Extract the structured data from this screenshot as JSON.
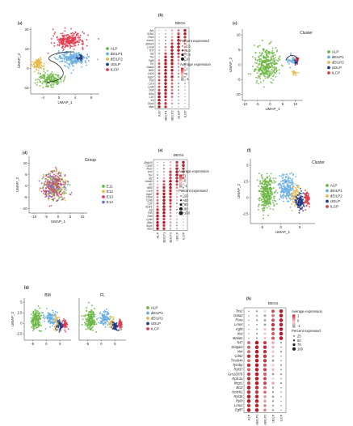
{
  "colors": {
    "ALP": "#6cb744",
    "dEILP1": "#6aaee0",
    "dEILP2": "#e8b84a",
    "cEILP": "#233a86",
    "ILCP": "#e23a4a",
    "E11": "#6cb744",
    "E12": "#e8b84a",
    "E13": "#e23a4a",
    "E14": "#8a6fc0",
    "dot_low": "#f3d3d3",
    "dot_high": "#b51d2a",
    "dot_neg": "#9d9d9d"
  },
  "panel_labels": [
    "(a)",
    "(b)",
    "(c)",
    "(d)",
    "(e)",
    "(f)",
    "(g)",
    "(h)"
  ],
  "chart_data": [
    {
      "id": "a",
      "type": "scatter",
      "xlabel": "UMAP_1",
      "ylabel": "UMAP_2",
      "xticks": [
        -4,
        0,
        4,
        8
      ],
      "yticks": [
        -10,
        0,
        10,
        20
      ],
      "xlim": [
        -7,
        10
      ],
      "ylim": [
        -13,
        21
      ],
      "legend": [
        "ALP",
        "dEILP1",
        "dEILP2",
        "cEILP",
        "ILCP"
      ],
      "clusters": [
        {
          "name": "ILCP",
          "cx": 2.5,
          "cy": 14.5,
          "sx": 3.2,
          "sy": 3.2,
          "n": 240
        },
        {
          "name": "dEILP1",
          "cx": 3.5,
          "cy": 5,
          "sx": 3.2,
          "sy": 3,
          "n": 240
        },
        {
          "name": "cEILP",
          "cx": 5.2,
          "cy": 5.5,
          "sx": 0.6,
          "sy": 1.6,
          "n": 25
        },
        {
          "name": "dEILP2",
          "cx": -5.2,
          "cy": 2.5,
          "sx": 1.1,
          "sy": 2.6,
          "n": 90
        },
        {
          "name": "ALP",
          "cx": -2.4,
          "cy": -5.5,
          "sx": 2.4,
          "sy": 3,
          "n": 170
        }
      ]
    },
    {
      "id": "b",
      "type": "dot",
      "title": "DEGs",
      "genes": [
        "Ahr",
        "Il18r1",
        "Rora",
        "Icam1",
        "Zbtb16",
        "Lmo4",
        "Tcf7",
        "Id2",
        "Tox",
        "Fgf5",
        "Il7r",
        "Gata3",
        "Nfil3",
        "Cd24",
        "Itgb7",
        "Flt3",
        "Ccr9",
        "Ly6d",
        "Dntt",
        "Il2ra",
        "Cd7",
        "Kit",
        "Sox4",
        "Mpo"
      ],
      "groups": [
        "ALP",
        "dEILP1",
        "dEILP2",
        "cEILP",
        "ILCP"
      ],
      "legend_size_title": "Percent expressed",
      "size_levels": [
        "2.5",
        "5.0",
        "7.5",
        "10"
      ],
      "legend_color_title": "Average expression",
      "color_levels": [
        "1",
        "0",
        "-1"
      ]
    },
    {
      "id": "c",
      "type": "scatter",
      "title": "Cluster",
      "xlabel": "UMAP_1",
      "ylabel": "UMAP_2",
      "xticks": [
        -10,
        -5,
        0,
        5,
        10
      ],
      "yticks": [
        -10,
        -5,
        0,
        5,
        10
      ],
      "xlim": [
        -11,
        13
      ],
      "ylim": [
        -12,
        12
      ],
      "legend": [
        "ALP",
        "dEILP1",
        "dEILP2",
        "cEILP",
        "ILCP"
      ],
      "clusters": [
        {
          "name": "ALP",
          "cx": -1.5,
          "cy": 0,
          "sx": 4,
          "sy": 4.5,
          "n": 340
        },
        {
          "name": "dEILP1",
          "cx": 8.5,
          "cy": 1.5,
          "sx": 1.4,
          "sy": 1.4,
          "n": 35
        },
        {
          "name": "cEILP",
          "cx": 10.3,
          "cy": 1,
          "sx": 0.6,
          "sy": 1,
          "n": 20
        },
        {
          "name": "ILCP",
          "cx": 10.7,
          "cy": 1.8,
          "sx": 0.5,
          "sy": 0.8,
          "n": 15
        },
        {
          "name": "dEILP2",
          "cx": 9.8,
          "cy": -2.5,
          "sx": 0.8,
          "sy": 0.8,
          "n": 18
        }
      ]
    },
    {
      "id": "d",
      "type": "scatter",
      "title": "Group",
      "xlabel": "UMAP_1",
      "ylabel": "UMAP_2",
      "xticks": [
        -10,
        -5,
        0,
        5,
        10
      ],
      "yticks": [
        -10,
        -5,
        0,
        5,
        10
      ],
      "xlim": [
        -12,
        12
      ],
      "ylim": [
        -12,
        13
      ],
      "legend": [
        "E11",
        "E12",
        "E13",
        "E14"
      ],
      "clusters": [
        {
          "name": "E11",
          "cx": -1.5,
          "cy": 0,
          "sx": 4,
          "sy": 5,
          "n": 120
        },
        {
          "name": "E12",
          "cx": -1.5,
          "cy": 0,
          "sx": 4,
          "sy": 5,
          "n": 120
        },
        {
          "name": "E13",
          "cx": -1.5,
          "cy": 0,
          "sx": 4,
          "sy": 5,
          "n": 120
        },
        {
          "name": "E14",
          "cx": -1.5,
          "cy": 0,
          "sx": 4,
          "sy": 5,
          "n": 120
        }
      ]
    },
    {
      "id": "e",
      "type": "dot",
      "title": "DEGs",
      "genes": [
        "Zbtb16",
        "Cpa3",
        "Rorc",
        "Tcf7",
        "Tox",
        "Id2",
        "Gata3",
        "Il7r",
        "Nfil3",
        "Ccr9",
        "Itgb7",
        "Cd24",
        "Ly6a",
        "Cd7",
        "Il18r1",
        "Kit",
        "Flt3",
        "Dntt",
        "Ly6d",
        "Mpo",
        "Sox4",
        "Il2ra"
      ],
      "groups": [
        "ALP",
        "dEILP1",
        "dEILP2",
        "cEILP",
        "ILCP"
      ],
      "legend_color_title": "Average expression",
      "color_levels": [
        "1",
        "0",
        "-1"
      ],
      "legend_size_title": "Percent expressed",
      "size_levels": [
        "20",
        "40",
        "60",
        "80",
        "100"
      ]
    },
    {
      "id": "f",
      "type": "scatter",
      "title": "Cluster",
      "xlabel": "UMAP_1",
      "ylabel": "UMAP_2",
      "xticks": [
        -5,
        0,
        5
      ],
      "yticks": [
        -2.5,
        0.0,
        2.5,
        5.0
      ],
      "xlim": [
        -8,
        9
      ],
      "ylim": [
        -4,
        6
      ],
      "legend": [
        "ALP",
        "dEILP1",
        "dEILP2",
        "cEILP",
        "ILCP"
      ],
      "clusters": [
        {
          "name": "ALP",
          "cx": -3.8,
          "cy": 0.8,
          "sx": 1.6,
          "sy": 2.1,
          "n": 330
        },
        {
          "name": "dEILP1",
          "cx": 1.5,
          "cy": 1.3,
          "sx": 1.8,
          "sy": 1.7,
          "n": 220
        },
        {
          "name": "dEILP2",
          "cx": 3.8,
          "cy": 0.3,
          "sx": 0.9,
          "sy": 1.3,
          "n": 70
        },
        {
          "name": "cEILP",
          "cx": 5,
          "cy": -0.6,
          "sx": 1,
          "sy": 1.1,
          "n": 110
        },
        {
          "name": "ILCP",
          "cx": 6.9,
          "cy": -0.3,
          "sx": 0.6,
          "sy": 0.9,
          "n": 80
        }
      ]
    },
    {
      "id": "g-bm",
      "type": "scatter",
      "title": "BM",
      "xlabel": "",
      "ylabel": "UMAP_2",
      "xticks": [
        -5,
        0,
        5
      ],
      "yticks": [
        -2.5,
        0.0,
        2.5,
        5.0
      ],
      "xlim": [
        -8,
        9
      ],
      "ylim": [
        -4,
        6
      ],
      "clusters": [
        {
          "name": "ALP",
          "cx": -3.8,
          "cy": 0.8,
          "sx": 1.6,
          "sy": 2,
          "n": 170
        },
        {
          "name": "dEILP1",
          "cx": 1.5,
          "cy": 1.2,
          "sx": 1.8,
          "sy": 1.6,
          "n": 110
        },
        {
          "name": "dEILP2",
          "cx": 3.8,
          "cy": 0.3,
          "sx": 0.9,
          "sy": 1.2,
          "n": 35
        },
        {
          "name": "cEILP",
          "cx": 5,
          "cy": -0.6,
          "sx": 1,
          "sy": 1,
          "n": 55
        },
        {
          "name": "ILCP",
          "cx": 6.9,
          "cy": -0.3,
          "sx": 0.6,
          "sy": 0.9,
          "n": 45
        }
      ]
    },
    {
      "id": "g-fl",
      "type": "scatter",
      "title": "FL",
      "xlabel": "",
      "ylabel": "",
      "xticks": [
        -5,
        0,
        5
      ],
      "yticks": [],
      "xlim": [
        -8,
        9
      ],
      "ylim": [
        -4,
        6
      ],
      "legend": [
        "ALP",
        "dEILP1",
        "dEILP2",
        "cEILP",
        "ILCP"
      ],
      "clusters": [
        {
          "name": "ALP",
          "cx": -3.8,
          "cy": 0.8,
          "sx": 1.6,
          "sy": 2,
          "n": 170
        },
        {
          "name": "dEILP1",
          "cx": 1.5,
          "cy": 1.2,
          "sx": 1.8,
          "sy": 1.6,
          "n": 110
        },
        {
          "name": "dEILP2",
          "cx": 3.8,
          "cy": 0.3,
          "sx": 0.9,
          "sy": 1.2,
          "n": 35
        },
        {
          "name": "cEILP",
          "cx": 5,
          "cy": -0.6,
          "sx": 1,
          "sy": 1,
          "n": 55
        },
        {
          "name": "ILCP",
          "cx": 6.9,
          "cy": -0.3,
          "sx": 0.6,
          "sy": 0.9,
          "n": 45
        }
      ]
    },
    {
      "id": "h",
      "type": "dot",
      "title": "DEGs",
      "genes": [
        "Tox2",
        "Gata3",
        "Rora",
        "Lmo4",
        "Fgf9",
        "Xist",
        "Malat1",
        "Tcf7",
        "St3gal3",
        "Vim",
        "Cd52",
        "Tmsb4x",
        "Tyrobp",
        "Rpl37",
        "Gm10076",
        "Rpl13a",
        "Ifngr1",
        "Bcl2",
        "Notch1",
        "Rpl36",
        "Rpl9",
        "Lmo2",
        "Egfl7"
      ],
      "groups": [
        "ALP",
        "dEILP1",
        "dEILP2",
        "cEILP",
        "ILCP"
      ],
      "legend_color_title": "Average expression",
      "color_levels": [
        "1",
        "0",
        "-1"
      ],
      "legend_size_title": "Percent expressed",
      "size_levels": [
        "25",
        "50",
        "75",
        "100"
      ]
    }
  ]
}
